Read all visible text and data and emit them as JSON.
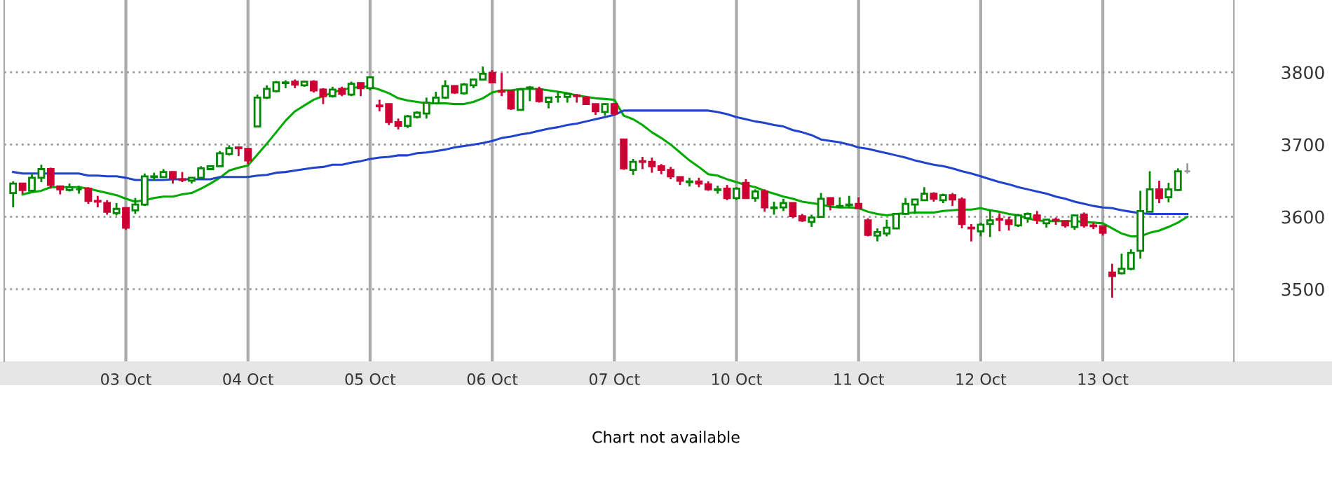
{
  "chart_data": {
    "type": "candlestick",
    "categories": [
      null,
      null,
      null,
      null,
      null,
      null,
      null,
      null,
      null,
      null,
      null,
      null,
      "03 Oct",
      null,
      null,
      null,
      null,
      null,
      null,
      null,
      null,
      null,
      null,
      null,
      null,
      "04 Oct",
      null,
      null,
      null,
      null,
      null,
      null,
      null,
      null,
      null,
      null,
      null,
      null,
      "05 Oct",
      null,
      null,
      null,
      null,
      null,
      null,
      null,
      null,
      null,
      null,
      null,
      null,
      "06 Oct",
      null,
      null,
      null,
      null,
      null,
      null,
      null,
      null,
      null,
      null,
      null,
      null,
      "07 Oct",
      null,
      null,
      null,
      null,
      null,
      null,
      null,
      null,
      null,
      null,
      null,
      null,
      "10 Oct",
      null,
      null,
      null,
      null,
      null,
      null,
      null,
      null,
      null,
      null,
      null,
      null,
      "11 Oct",
      null,
      null,
      null,
      null,
      null,
      null,
      null,
      null,
      null,
      null,
      null,
      null,
      "12 Oct",
      null,
      null,
      null,
      null,
      null,
      null,
      null,
      null,
      null,
      null,
      null,
      null,
      "13 Oct",
      null,
      null,
      null,
      null,
      null,
      null,
      null,
      null,
      null
    ],
    "ohlc": [
      [
        3633,
        3649,
        3613,
        3646
      ],
      [
        3646,
        3646,
        3632,
        3637
      ],
      [
        3636,
        3660,
        3635,
        3654
      ],
      [
        3654,
        3672,
        3648,
        3666
      ],
      [
        3666,
        3668,
        3639,
        3644
      ],
      [
        3642,
        3642,
        3631,
        3638
      ],
      [
        3637,
        3646,
        3635,
        3641
      ],
      [
        3638,
        3643,
        3632,
        3638
      ],
      [
        3639,
        3641,
        3618,
        3622
      ],
      [
        3622,
        3629,
        3613,
        3621
      ],
      [
        3619,
        3623,
        3603,
        3607
      ],
      [
        3605,
        3619,
        3602,
        3611
      ],
      [
        3612,
        3613,
        3582,
        3585
      ],
      [
        3609,
        3626,
        3604,
        3617
      ],
      [
        3617,
        3660,
        3615,
        3656
      ],
      [
        3655,
        3661,
        3650,
        3656
      ],
      [
        3655,
        3666,
        3654,
        3662
      ],
      [
        3662,
        3663,
        3646,
        3653
      ],
      [
        3652,
        3662,
        3648,
        3651
      ],
      [
        3650,
        3655,
        3646,
        3654
      ],
      [
        3654,
        3670,
        3653,
        3667
      ],
      [
        3666,
        3671,
        3665,
        3670
      ],
      [
        3670,
        3691,
        3669,
        3688
      ],
      [
        3687,
        3699,
        3685,
        3695
      ],
      [
        3696,
        3697,
        3684,
        3695
      ],
      [
        3694,
        3695,
        3673,
        3678
      ],
      [
        3725,
        3769,
        3724,
        3765
      ],
      [
        3765,
        3782,
        3763,
        3777
      ],
      [
        3774,
        3788,
        3772,
        3786
      ],
      [
        3785,
        3789,
        3778,
        3786
      ],
      [
        3787,
        3790,
        3778,
        3783
      ],
      [
        3782,
        3788,
        3780,
        3787
      ],
      [
        3787,
        3789,
        3772,
        3775
      ],
      [
        3776,
        3778,
        3756,
        3767
      ],
      [
        3767,
        3780,
        3765,
        3776
      ],
      [
        3777,
        3780,
        3767,
        3770
      ],
      [
        3769,
        3787,
        3767,
        3784
      ],
      [
        3785,
        3786,
        3767,
        3778
      ],
      [
        3778,
        3793,
        3775,
        3793
      ],
      [
        3754,
        3762,
        3746,
        3753
      ],
      [
        3756,
        3757,
        3727,
        3731
      ],
      [
        3731,
        3736,
        3721,
        3726
      ],
      [
        3726,
        3741,
        3723,
        3739
      ],
      [
        3738,
        3746,
        3736,
        3744
      ],
      [
        3743,
        3765,
        3736,
        3758
      ],
      [
        3757,
        3773,
        3756,
        3765
      ],
      [
        3765,
        3789,
        3763,
        3781
      ],
      [
        3781,
        3782,
        3770,
        3772
      ],
      [
        3771,
        3785,
        3769,
        3783
      ],
      [
        3782,
        3791,
        3778,
        3790
      ],
      [
        3790,
        3808,
        3789,
        3798
      ],
      [
        3799,
        3803,
        3785,
        3786
      ],
      [
        3774,
        3799,
        3767,
        3773
      ],
      [
        3774,
        3775,
        3748,
        3750
      ],
      [
        3748,
        3777,
        3747,
        3776
      ],
      [
        3778,
        3781,
        3760,
        3779
      ],
      [
        3776,
        3780,
        3758,
        3760
      ],
      [
        3759,
        3766,
        3750,
        3765
      ],
      [
        3766,
        3774,
        3758,
        3766
      ],
      [
        3766,
        3771,
        3758,
        3770
      ],
      [
        3768,
        3770,
        3758,
        3767
      ],
      [
        3765,
        3767,
        3755,
        3756
      ],
      [
        3756,
        3756,
        3741,
        3746
      ],
      [
        3745,
        3757,
        3740,
        3756
      ],
      [
        3756,
        3757,
        3740,
        3743
      ],
      [
        3707,
        3707,
        3665,
        3667
      ],
      [
        3665,
        3680,
        3658,
        3676
      ],
      [
        3677,
        3683,
        3666,
        3676
      ],
      [
        3676,
        3682,
        3661,
        3670
      ],
      [
        3670,
        3673,
        3659,
        3665
      ],
      [
        3665,
        3669,
        3652,
        3656
      ],
      [
        3655,
        3655,
        3644,
        3650
      ],
      [
        3648,
        3654,
        3642,
        3649
      ],
      [
        3649,
        3654,
        3641,
        3646
      ],
      [
        3645,
        3649,
        3636,
        3638
      ],
      [
        3637,
        3643,
        3632,
        3638
      ],
      [
        3639,
        3644,
        3623,
        3626
      ],
      [
        3626,
        3641,
        3623,
        3639
      ],
      [
        3647,
        3652,
        3625,
        3626
      ],
      [
        3626,
        3638,
        3621,
        3635
      ],
      [
        3635,
        3638,
        3607,
        3613
      ],
      [
        3612,
        3621,
        3603,
        3613
      ],
      [
        3613,
        3625,
        3608,
        3619
      ],
      [
        3619,
        3619,
        3598,
        3601
      ],
      [
        3601,
        3604,
        3593,
        3595
      ],
      [
        3593,
        3603,
        3586,
        3599
      ],
      [
        3600,
        3633,
        3600,
        3625
      ],
      [
        3626,
        3627,
        3609,
        3617
      ],
      [
        3614,
        3627,
        3612,
        3615
      ],
      [
        3616,
        3629,
        3612,
        3617
      ],
      [
        3618,
        3627,
        3611,
        3612
      ],
      [
        3595,
        3598,
        3573,
        3575
      ],
      [
        3574,
        3584,
        3566,
        3579
      ],
      [
        3577,
        3596,
        3573,
        3585
      ],
      [
        3584,
        3605,
        3583,
        3604
      ],
      [
        3604,
        3626,
        3603,
        3618
      ],
      [
        3617,
        3625,
        3604,
        3624
      ],
      [
        3623,
        3641,
        3623,
        3632
      ],
      [
        3632,
        3634,
        3621,
        3625
      ],
      [
        3623,
        3632,
        3619,
        3630
      ],
      [
        3630,
        3633,
        3615,
        3624
      ],
      [
        3624,
        3627,
        3584,
        3590
      ],
      [
        3585,
        3590,
        3566,
        3584
      ],
      [
        3580,
        3592,
        3573,
        3589
      ],
      [
        3590,
        3610,
        3572,
        3595
      ],
      [
        3597,
        3605,
        3580,
        3596
      ],
      [
        3595,
        3600,
        3581,
        3590
      ],
      [
        3588,
        3604,
        3586,
        3602
      ],
      [
        3598,
        3606,
        3592,
        3604
      ],
      [
        3602,
        3608,
        3590,
        3596
      ],
      [
        3591,
        3596,
        3585,
        3596
      ],
      [
        3596,
        3599,
        3589,
        3595
      ],
      [
        3594,
        3594,
        3585,
        3588
      ],
      [
        3586,
        3602,
        3582,
        3602
      ],
      [
        3603,
        3606,
        3585,
        3588
      ],
      [
        3588,
        3592,
        3583,
        3587
      ],
      [
        3587,
        3587,
        3574,
        3578
      ],
      [
        3523,
        3535,
        3488,
        3518
      ],
      [
        3522,
        3549,
        3520,
        3528
      ],
      [
        3528,
        3555,
        3526,
        3550
      ],
      [
        3553,
        3636,
        3542,
        3608
      ],
      [
        3607,
        3663,
        3607,
        3638
      ],
      [
        3638,
        3650,
        3619,
        3626
      ],
      [
        3627,
        3647,
        3620,
        3638
      ],
      [
        3637,
        3667,
        3636,
        3663
      ],
      [
        3663,
        3674,
        3660,
        3663
      ]
    ],
    "colors": [
      "#008800",
      "#cc0033",
      "#008800",
      "#008800",
      "#cc0033",
      "#cc0033",
      "#008800",
      "#008800",
      "#cc0033",
      "#cc0033",
      "#cc0033",
      "#008800",
      "#cc0033",
      "#008800",
      "#008800",
      "#008800",
      "#008800",
      "#cc0033",
      "#cc0033",
      "#008800",
      "#008800",
      "#008800",
      "#008800",
      "#008800",
      "#cc0033",
      "#cc0033",
      "#008800",
      "#008800",
      "#008800",
      "#008800",
      "#cc0033",
      "#008800",
      "#cc0033",
      "#cc0033",
      "#008800",
      "#cc0033",
      "#008800",
      "#cc0033",
      "#008800",
      "#cc0033",
      "#cc0033",
      "#cc0033",
      "#008800",
      "#008800",
      "#008800",
      "#008800",
      "#008800",
      "#cc0033",
      "#008800",
      "#008800",
      "#008800",
      "#cc0033",
      "#cc0033",
      "#cc0033",
      "#008800",
      "#008800",
      "#cc0033",
      "#008800",
      "#008800",
      "#008800",
      "#cc0033",
      "#cc0033",
      "#cc0033",
      "#008800",
      "#cc0033",
      "#cc0033",
      "#008800",
      "#cc0033",
      "#cc0033",
      "#cc0033",
      "#cc0033",
      "#cc0033",
      "#008800",
      "#cc0033",
      "#cc0033",
      "#008800",
      "#cc0033",
      "#008800",
      "#cc0033",
      "#008800",
      "#cc0033",
      "#008800",
      "#008800",
      "#cc0033",
      "#cc0033",
      "#008800",
      "#008800",
      "#cc0033",
      "#008800",
      "#008800",
      "#cc0033",
      "#cc0033",
      "#008800",
      "#008800",
      "#008800",
      "#008800",
      "#008800",
      "#008800",
      "#cc0033",
      "#008800",
      "#cc0033",
      "#cc0033",
      "#cc0033",
      "#008800",
      "#008800",
      "#cc0033",
      "#cc0033",
      "#008800",
      "#008800",
      "#cc0033",
      "#008800",
      "#cc0033",
      "#cc0033",
      "#008800",
      "#cc0033",
      "#cc0033",
      "#cc0033",
      "#cc0033",
      "#008800",
      "#008800",
      "#008800",
      "#008800",
      "#cc0033",
      "#008800",
      "#008800",
      "#999999"
    ],
    "series": [
      {
        "type": "line",
        "color": "#00aa00",
        "values": [
          null,
          3631,
          3634,
          3636,
          3641,
          3641,
          3641,
          3641,
          3639,
          3636,
          3633,
          3630,
          3625,
          3621,
          3623,
          3626,
          3628,
          3628,
          3631,
          3633,
          3639,
          3646,
          3654,
          3664,
          3668,
          3671,
          3686,
          3701,
          3717,
          3733,
          3746,
          3754,
          3762,
          3767,
          3772,
          3776,
          3778,
          3780,
          3780,
          3776,
          3771,
          3764,
          3761,
          3759,
          3757,
          3757,
          3757,
          3756,
          3756,
          3759,
          3764,
          3772,
          3775,
          3775,
          3777,
          3777,
          3777,
          3775,
          3773,
          3771,
          3768,
          3766,
          3764,
          3763,
          3762,
          3740,
          3735,
          3727,
          3717,
          3709,
          3700,
          3689,
          3678,
          3669,
          3659,
          3657,
          3652,
          3648,
          3644,
          3641,
          3636,
          3632,
          3628,
          3625,
          3621,
          3619,
          3617,
          3614,
          3613,
          3613,
          3612,
          3607,
          3604,
          3602,
          3604,
          3605,
          3606,
          3606,
          3606,
          3608,
          3609,
          3610,
          3610,
          3612,
          3609,
          3607,
          3604,
          3602,
          3598,
          3595,
          3594,
          3594,
          3594,
          3594,
          3593,
          3592,
          3591,
          3584,
          3577,
          3573,
          3573,
          3578,
          3581,
          3586,
          3592,
          3600
        ]
      },
      {
        "type": "line",
        "color": "#2244cc",
        "values": [
          3662,
          3660,
          3660,
          3660,
          3660,
          3660,
          3660,
          3660,
          3657,
          3657,
          3656,
          3656,
          3654,
          3651,
          3651,
          3651,
          3651,
          3652,
          3652,
          3652,
          3652,
          3652,
          3655,
          3655,
          3655,
          3655,
          3657,
          3658,
          3661,
          3662,
          3664,
          3666,
          3668,
          3669,
          3672,
          3672,
          3675,
          3677,
          3680,
          3682,
          3683,
          3685,
          3685,
          3688,
          3689,
          3691,
          3693,
          3696,
          3698,
          3700,
          3702,
          3705,
          3709,
          3711,
          3714,
          3716,
          3719,
          3722,
          3724,
          3727,
          3729,
          3732,
          3735,
          3738,
          3741,
          3747,
          3747,
          3747,
          3747,
          3747,
          3747,
          3747,
          3747,
          3747,
          3747,
          3745,
          3742,
          3738,
          3735,
          3732,
          3730,
          3727,
          3725,
          3720,
          3717,
          3713,
          3707,
          3705,
          3703,
          3700,
          3696,
          3694,
          3691,
          3688,
          3685,
          3682,
          3678,
          3675,
          3672,
          3670,
          3667,
          3663,
          3660,
          3656,
          3652,
          3648,
          3645,
          3641,
          3638,
          3635,
          3632,
          3628,
          3625,
          3621,
          3618,
          3615,
          3613,
          3612,
          3609,
          3607,
          3605,
          3604,
          3604,
          3604,
          3604,
          3604
        ]
      }
    ],
    "ylim": [
      3400,
      3900
    ],
    "yticks": [
      3500,
      3600,
      3700,
      3800
    ],
    "grid": true,
    "annotations": [
      "Chart not available"
    ]
  }
}
